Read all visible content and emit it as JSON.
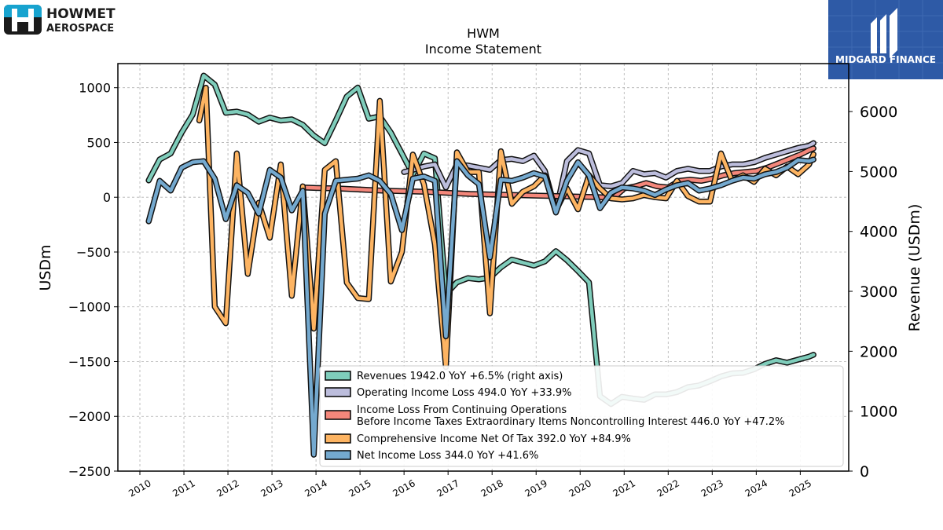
{
  "branding": {
    "company_line1": "HOWMET",
    "company_line2": "AEROSPACE",
    "publisher": "MIDGARD FINANCE"
  },
  "chart_data": {
    "type": "line",
    "title": "HWM",
    "subtitle": "Income Statement",
    "ylabel": "USDm",
    "ylabel_right": "Revenue (USDm)",
    "ylim": [
      -2500,
      1220
    ],
    "ylim_right": [
      0,
      6800
    ],
    "xlim": [
      2009.5,
      2026.1
    ],
    "yticks": [
      -2500,
      -2000,
      -1500,
      -1000,
      -500,
      0,
      500,
      1000
    ],
    "ytick_labels": [
      "−2500",
      "−2000",
      "−1500",
      "−1000",
      "−500",
      "0",
      "500",
      "1000"
    ],
    "yticks_right": [
      0,
      1000,
      2000,
      3000,
      4000,
      5000,
      6000
    ],
    "xticks": [
      2010,
      2011,
      2012,
      2013,
      2014,
      2015,
      2016,
      2017,
      2018,
      2019,
      2020,
      2021,
      2022,
      2023,
      2024,
      2025
    ],
    "grid": true,
    "legend_position": "lower-right",
    "series": [
      {
        "name": "Revenues",
        "legend": "Revenues  1942.0 YoY +6.5% (right axis)",
        "color": "#7fcdbb",
        "axis": "right",
        "x": [
          2010.2,
          2010.45,
          2010.7,
          2010.95,
          2011.2,
          2011.45,
          2011.7,
          2011.95,
          2012.2,
          2012.45,
          2012.7,
          2012.95,
          2013.2,
          2013.45,
          2013.7,
          2013.95,
          2014.2,
          2014.45,
          2014.7,
          2014.95,
          2015.2,
          2015.45,
          2015.7,
          2015.95,
          2016.2,
          2016.45,
          2016.7,
          2016.95,
          2017.2,
          2017.45,
          2017.7,
          2017.95,
          2018.2,
          2018.45,
          2018.7,
          2018.95,
          2019.2,
          2019.45,
          2019.7,
          2019.95,
          2020.2,
          2020.45,
          2020.7,
          2020.95,
          2021.2,
          2021.45,
          2021.7,
          2021.95,
          2022.2,
          2022.45,
          2022.7,
          2022.95,
          2023.2,
          2023.45,
          2023.7,
          2023.95,
          2024.2,
          2024.45,
          2024.7,
          2024.95,
          2025.2,
          2025.3
        ],
        "y": [
          4850,
          5200,
          5300,
          5650,
          5950,
          6600,
          6450,
          5980,
          6000,
          5950,
          5830,
          5900,
          5850,
          5870,
          5780,
          5600,
          5470,
          5850,
          6250,
          6400,
          5880,
          5920,
          5650,
          5300,
          4950,
          5300,
          5220,
          2950,
          3150,
          3220,
          3200,
          3230,
          3400,
          3530,
          3480,
          3430,
          3500,
          3670,
          3520,
          3340,
          3150,
          1250,
          1120,
          1240,
          1210,
          1190,
          1280,
          1280,
          1320,
          1400,
          1430,
          1500,
          1580,
          1630,
          1640,
          1700,
          1790,
          1850,
          1810,
          1860,
          1910,
          1942
        ]
      },
      {
        "name": "Operating Income Loss",
        "legend": "Operating Income Loss  494.0 YoY +33.9%",
        "color": "#bcbddc",
        "axis": "left",
        "x": [
          2016.0,
          2016.2,
          2016.45,
          2016.7,
          2016.95,
          2017.2,
          2017.45,
          2017.7,
          2017.95,
          2018.2,
          2018.45,
          2018.7,
          2018.95,
          2019.2,
          2019.45,
          2019.7,
          2019.95,
          2020.2,
          2020.45,
          2020.7,
          2020.95,
          2021.2,
          2021.45,
          2021.7,
          2021.95,
          2022.2,
          2022.45,
          2022.7,
          2022.95,
          2023.2,
          2023.45,
          2023.7,
          2023.95,
          2024.2,
          2024.45,
          2024.7,
          2024.95,
          2025.2,
          2025.3
        ],
        "y": [
          230,
          250,
          280,
          300,
          90,
          300,
          290,
          270,
          250,
          340,
          350,
          330,
          380,
          240,
          -130,
          330,
          430,
          400,
          110,
          100,
          130,
          240,
          210,
          220,
          180,
          240,
          260,
          240,
          240,
          280,
          300,
          300,
          320,
          360,
          390,
          420,
          450,
          470,
          494
        ]
      },
      {
        "name": "Income Loss From Continuing Operations Before Income Taxes Extraordinary Items Noncontrolling Interest",
        "legend_line1": "Income Loss From Continuing Operations",
        "legend_line2": "Before Income Taxes Extraordinary Items Noncontrolling Interest  446.0 YoY +47.2%",
        "color": "#f4877b",
        "axis": "left",
        "x": [
          2013.7,
          2014.0,
          2014.5,
          2015.0,
          2015.5,
          2016.0,
          2016.5,
          2017.0,
          2017.5,
          2018.0,
          2018.5,
          2019.0,
          2019.5,
          2020.0,
          2020.5,
          2020.75,
          2021.0,
          2021.25,
          2021.5,
          2021.75,
          2022.0,
          2022.25,
          2022.5,
          2022.75,
          2023.0,
          2023.25,
          2023.5,
          2023.75,
          2024.0,
          2024.25,
          2024.5,
          2024.75,
          2025.0,
          2025.2,
          2025.3
        ],
        "y": [
          90,
          85,
          80,
          70,
          60,
          55,
          50,
          40,
          30,
          25,
          20,
          15,
          10,
          5,
          0,
          -10,
          80,
          100,
          130,
          100,
          90,
          150,
          160,
          150,
          170,
          200,
          220,
          230,
          240,
          270,
          310,
          350,
          390,
          430,
          446
        ]
      },
      {
        "name": "Comprehensive Income Net Of Tax",
        "legend": "Comprehensive Income Net Of Tax  392.0 YoY +84.9%",
        "color": "#fdb462",
        "axis": "left",
        "x": [
          2011.35,
          2011.5,
          2011.7,
          2011.95,
          2012.2,
          2012.45,
          2012.7,
          2012.95,
          2013.2,
          2013.45,
          2013.7,
          2013.95,
          2014.2,
          2014.45,
          2014.7,
          2014.95,
          2015.2,
          2015.45,
          2015.7,
          2015.95,
          2016.2,
          2016.45,
          2016.7,
          2016.95,
          2017.2,
          2017.45,
          2017.7,
          2017.95,
          2018.2,
          2018.45,
          2018.7,
          2018.95,
          2019.2,
          2019.45,
          2019.7,
          2019.95,
          2020.2,
          2020.45,
          2020.7,
          2020.95,
          2021.2,
          2021.45,
          2021.7,
          2021.95,
          2022.2,
          2022.45,
          2022.7,
          2022.95,
          2023.2,
          2023.45,
          2023.7,
          2023.95,
          2024.2,
          2024.45,
          2024.7,
          2024.95,
          2025.2,
          2025.3
        ],
        "y": [
          700,
          1000,
          -1000,
          -1150,
          400,
          -700,
          -50,
          -370,
          300,
          -900,
          100,
          -1200,
          250,
          330,
          -780,
          -920,
          -930,
          880,
          -770,
          -500,
          390,
          120,
          -430,
          -1550,
          410,
          230,
          230,
          -1060,
          420,
          -60,
          50,
          100,
          200,
          -120,
          80,
          -110,
          200,
          80,
          -10,
          -20,
          -10,
          20,
          0,
          -10,
          150,
          10,
          -40,
          -40,
          400,
          150,
          200,
          140,
          260,
          200,
          280,
          210,
          300,
          392
        ]
      },
      {
        "name": "Net Income Loss",
        "legend": "Net Income Loss  344.0 YoY +41.6%",
        "color": "#74a9cf",
        "axis": "left",
        "x": [
          2010.2,
          2010.45,
          2010.7,
          2010.95,
          2011.2,
          2011.45,
          2011.7,
          2011.95,
          2012.2,
          2012.45,
          2012.7,
          2012.95,
          2013.2,
          2013.45,
          2013.7,
          2013.95,
          2014.2,
          2014.45,
          2014.7,
          2014.95,
          2015.2,
          2015.45,
          2015.7,
          2015.95,
          2016.2,
          2016.45,
          2016.7,
          2016.95,
          2017.2,
          2017.45,
          2017.7,
          2017.95,
          2018.2,
          2018.45,
          2018.7,
          2018.95,
          2019.2,
          2019.45,
          2019.7,
          2019.95,
          2020.2,
          2020.45,
          2020.7,
          2020.95,
          2021.2,
          2021.45,
          2021.7,
          2021.95,
          2022.2,
          2022.45,
          2022.7,
          2022.95,
          2023.2,
          2023.45,
          2023.7,
          2023.95,
          2024.2,
          2024.45,
          2024.7,
          2024.95,
          2025.2,
          2025.3
        ],
        "y": [
          -220,
          150,
          60,
          270,
          320,
          330,
          170,
          -200,
          110,
          40,
          -150,
          250,
          180,
          -120,
          60,
          -2350,
          -150,
          150,
          160,
          170,
          200,
          150,
          30,
          -300,
          170,
          190,
          150,
          -1270,
          330,
          200,
          120,
          -550,
          160,
          150,
          180,
          220,
          190,
          -140,
          150,
          320,
          200,
          -100,
          40,
          90,
          80,
          60,
          20,
          70,
          110,
          130,
          60,
          80,
          110,
          150,
          180,
          170,
          210,
          230,
          270,
          340,
          330,
          344
        ]
      }
    ]
  }
}
